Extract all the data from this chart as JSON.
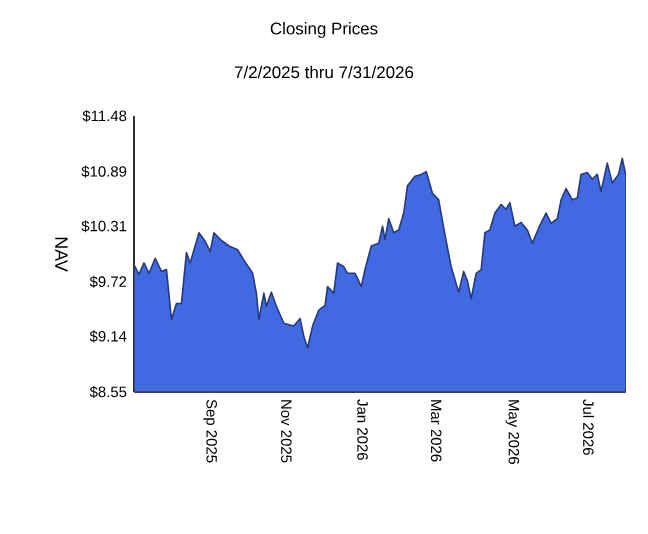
{
  "chart_data": {
    "type": "area",
    "title": "Closing Prices",
    "subtitle": "7/2/2025 thru 7/31/2026",
    "ylabel": "NAV",
    "x": [
      "2025-07-02",
      "2025-07-06",
      "2025-07-10",
      "2025-07-14",
      "2025-07-19",
      "2025-07-24",
      "2025-07-28",
      "2025-08-01",
      "2025-08-05",
      "2025-08-09",
      "2025-08-13",
      "2025-08-16",
      "2025-08-23",
      "2025-08-28",
      "2025-09-01",
      "2025-09-04",
      "2025-09-09",
      "2025-09-16",
      "2025-09-23",
      "2025-09-28",
      "2025-10-05",
      "2025-10-08",
      "2025-10-10",
      "2025-10-14",
      "2025-10-16",
      "2025-10-20",
      "2025-10-24",
      "2025-10-30",
      "2025-11-07",
      "2025-11-12",
      "2025-11-15",
      "2025-11-18",
      "2025-11-22",
      "2025-11-27",
      "2025-12-02",
      "2025-12-04",
      "2025-12-09",
      "2025-12-12",
      "2025-12-17",
      "2025-12-20",
      "2025-12-26",
      "2025-12-31",
      "2026-01-03",
      "2026-01-08",
      "2026-01-14",
      "2026-01-17",
      "2026-01-19",
      "2026-01-22",
      "2026-01-26",
      "2026-01-30",
      "2026-02-03",
      "2026-02-06",
      "2026-02-12",
      "2026-02-17",
      "2026-02-21",
      "2026-02-26",
      "2026-03-03",
      "2026-03-08",
      "2026-03-13",
      "2026-03-19",
      "2026-03-23",
      "2026-03-26",
      "2026-03-29",
      "2026-04-02",
      "2026-04-06",
      "2026-04-09",
      "2026-04-13",
      "2026-04-17",
      "2026-04-22",
      "2026-04-26",
      "2026-04-29",
      "2026-05-03",
      "2026-05-08",
      "2026-05-13",
      "2026-05-17",
      "2026-05-23",
      "2026-05-28",
      "2026-06-01",
      "2026-06-06",
      "2026-06-09",
      "2026-06-13",
      "2026-06-18",
      "2026-06-22",
      "2026-06-25",
      "2026-06-30",
      "2026-07-04",
      "2026-07-08",
      "2026-07-11",
      "2026-07-16",
      "2026-07-20",
      "2026-07-25",
      "2026-07-28",
      "2026-07-31"
    ],
    "series": [
      {
        "color": "#4169e1",
        "values": [
          9.9,
          9.8,
          9.92,
          9.81,
          9.97,
          9.83,
          9.85,
          9.32,
          9.49,
          9.49,
          10.03,
          9.92,
          10.24,
          10.15,
          10.04,
          10.24,
          10.17,
          10.1,
          10.06,
          9.95,
          9.81,
          9.6,
          9.32,
          9.6,
          9.46,
          9.61,
          9.46,
          9.28,
          9.25,
          9.33,
          9.14,
          9.02,
          9.25,
          9.42,
          9.47,
          9.67,
          9.6,
          9.92,
          9.88,
          9.81,
          9.81,
          9.67,
          9.85,
          10.1,
          10.13,
          10.31,
          10.17,
          10.39,
          10.24,
          10.27,
          10.45,
          10.74,
          10.84,
          10.86,
          10.89,
          10.66,
          10.59,
          10.22,
          9.88,
          9.61,
          9.83,
          9.73,
          9.54,
          9.81,
          9.85,
          10.24,
          10.27,
          10.45,
          10.54,
          10.49,
          10.56,
          10.31,
          10.35,
          10.27,
          10.13,
          10.32,
          10.45,
          10.34,
          10.39,
          10.59,
          10.71,
          10.59,
          10.61,
          10.86,
          10.88,
          10.81,
          10.86,
          10.68,
          10.98,
          10.77,
          10.86,
          11.03,
          10.84
        ]
      }
    ],
    "xlim": [
      "2025-07-02",
      "2026-07-31"
    ],
    "xticks": [
      {
        "value": "2025-09-01",
        "label": "Sep 2025"
      },
      {
        "value": "2025-11-01",
        "label": "Nov 2025"
      },
      {
        "value": "2026-01-01",
        "label": "Jan 2026"
      },
      {
        "value": "2026-03-01",
        "label": "Mar 2026"
      },
      {
        "value": "2026-05-01",
        "label": "May 2026"
      },
      {
        "value": "2026-07-01",
        "label": "Jul 2026"
      }
    ],
    "ylim": [
      8.55,
      11.48
    ],
    "yticks": [
      {
        "value": 8.55,
        "label": "$8.55"
      },
      {
        "value": 9.14,
        "label": "$9.14"
      },
      {
        "value": 9.72,
        "label": "$9.72"
      },
      {
        "value": 10.31,
        "label": "$10.31"
      },
      {
        "value": 10.89,
        "label": "$10.89"
      },
      {
        "value": 11.48,
        "label": "$11.48"
      }
    ],
    "grid": false
  }
}
